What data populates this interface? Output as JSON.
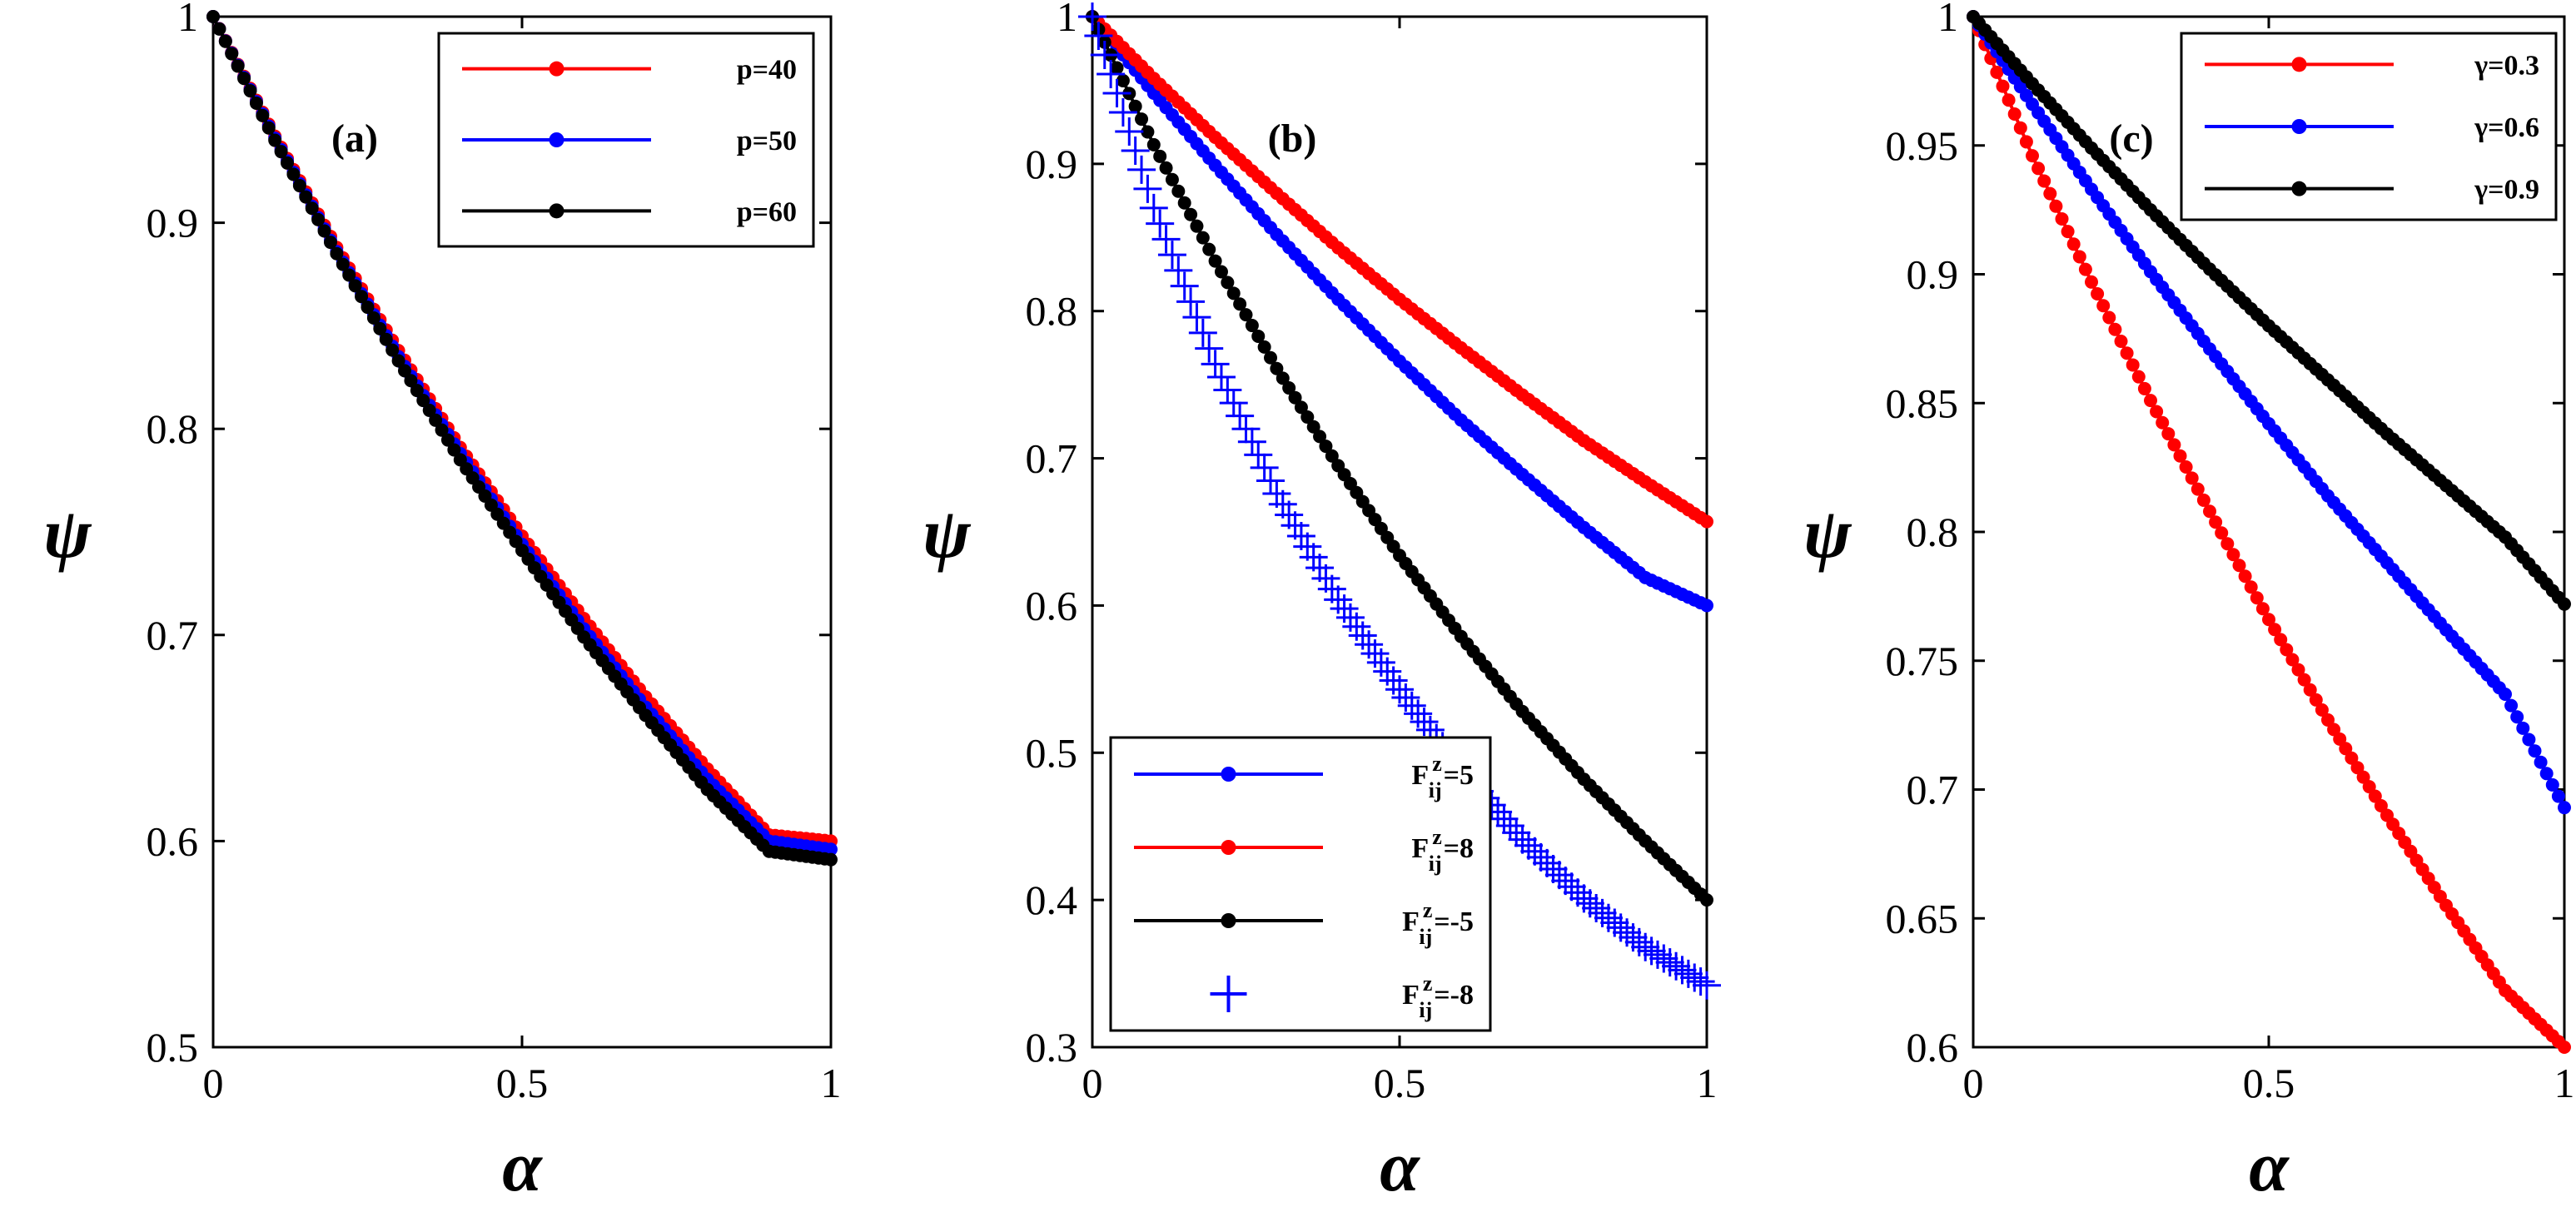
{
  "colors": {
    "red": "#ff0000",
    "blue": "#0000ff",
    "black": "#000000"
  },
  "chart_data": [
    {
      "type": "line",
      "panel_label": "(a)",
      "xlabel": "α",
      "ylabel": "ψ",
      "xlim": [
        0,
        1
      ],
      "ylim": [
        0.5,
        1
      ],
      "xticks": [
        0,
        0.5,
        1
      ],
      "xtick_labels": [
        "0",
        "0.5",
        "1"
      ],
      "yticks": [
        0.5,
        0.6,
        0.7,
        0.8,
        0.9,
        1
      ],
      "ytick_labels": [
        "0.5",
        "0.6",
        "0.7",
        "0.8",
        "0.9",
        "1"
      ],
      "grid": false,
      "legend_position": "top-right",
      "x": [
        0,
        0.1,
        0.2,
        0.3,
        0.4,
        0.5,
        0.6,
        0.7,
        0.8,
        0.9,
        1
      ],
      "series": [
        {
          "name": "p=40",
          "color": "red",
          "marker": "dot",
          "values": [
            1,
            0.942,
            0.888,
            0.838,
            0.791,
            0.748,
            0.708,
            0.67,
            0.635,
            0.603,
            0.6
          ]
        },
        {
          "name": "p=50",
          "color": "blue",
          "marker": "dot",
          "values": [
            1,
            0.941,
            0.886,
            0.835,
            0.788,
            0.744,
            0.703,
            0.665,
            0.63,
            0.6,
            0.596
          ]
        },
        {
          "name": "p=60",
          "color": "black",
          "marker": "dot",
          "values": [
            1,
            0.94,
            0.885,
            0.833,
            0.785,
            0.741,
            0.699,
            0.661,
            0.625,
            0.595,
            0.591
          ]
        }
      ]
    },
    {
      "type": "line",
      "panel_label": "(b)",
      "xlabel": "α",
      "ylabel": "ψ",
      "xlim": [
        0,
        1
      ],
      "ylim": [
        0.3,
        1
      ],
      "xticks": [
        0,
        0.5,
        1
      ],
      "xtick_labels": [
        "0",
        "0.5",
        "1"
      ],
      "yticks": [
        0.3,
        0.4,
        0.5,
        0.6,
        0.7,
        0.8,
        0.9,
        1
      ],
      "ytick_labels": [
        "0.3",
        "0.4",
        "0.5",
        "0.6",
        "0.7",
        "0.8",
        "0.9",
        "1"
      ],
      "grid": false,
      "legend_position": "bottom-left",
      "x": [
        0,
        0.1,
        0.2,
        0.3,
        0.4,
        0.5,
        0.6,
        0.7,
        0.8,
        0.9,
        1
      ],
      "series": [
        {
          "name": "F",
          "name_sup": "z",
          "name_sub": "ij",
          "name_suffix": "=5",
          "color": "blue",
          "marker": "dot",
          "values": [
            1,
            0.948,
            0.899,
            0.852,
            0.808,
            0.766,
            0.726,
            0.689,
            0.653,
            0.619,
            0.6
          ]
        },
        {
          "name": "F",
          "name_sup": "z",
          "name_sub": "ij",
          "name_suffix": "=8",
          "color": "red",
          "marker": "dot",
          "values": [
            1,
            0.958,
            0.918,
            0.88,
            0.843,
            0.808,
            0.775,
            0.743,
            0.712,
            0.684,
            0.657
          ]
        },
        {
          "name": "F",
          "name_sup": "z",
          "name_sub": "ij",
          "name_suffix": "=-5",
          "color": "black",
          "marker": "dot",
          "values": [
            1,
            0.913,
            0.834,
            0.761,
            0.695,
            0.634,
            0.579,
            0.528,
            0.482,
            0.44,
            0.4
          ]
        },
        {
          "name": "F",
          "name_sup": "z",
          "name_sub": "ij",
          "name_suffix": "=-8",
          "color": "blue",
          "marker": "plus",
          "values": [
            1,
            0.87,
            0.764,
            0.676,
            0.604,
            0.543,
            0.488,
            0.441,
            0.401,
            0.368,
            0.342
          ]
        }
      ]
    },
    {
      "type": "line",
      "panel_label": "(c)",
      "xlabel": "α",
      "ylabel": "ψ",
      "xlim": [
        0,
        1
      ],
      "ylim": [
        0.6,
        1
      ],
      "xticks": [
        0,
        0.5,
        1
      ],
      "xtick_labels": [
        "0",
        "0.5",
        "1"
      ],
      "yticks": [
        0.6,
        0.65,
        0.7,
        0.75,
        0.8,
        0.85,
        0.9,
        0.95,
        1
      ],
      "ytick_labels": [
        "0.6",
        "0.65",
        "0.7",
        "0.75",
        "0.8",
        "0.85",
        "0.9",
        "0.95",
        "1"
      ],
      "grid": false,
      "legend_position": "top-right",
      "x": [
        0,
        0.1,
        0.2,
        0.3,
        0.4,
        0.5,
        0.6,
        0.7,
        0.8,
        0.9,
        1
      ],
      "series": [
        {
          "name": "γ=0.3",
          "color": "red",
          "marker": "dot",
          "values": [
            1,
            0.946,
            0.897,
            0.851,
            0.808,
            0.766,
            0.727,
            0.69,
            0.655,
            0.622,
            0.6
          ]
        },
        {
          "name": "γ=0.6",
          "color": "blue",
          "marker": "dot",
          "values": [
            1,
            0.966,
            0.933,
            0.901,
            0.871,
            0.842,
            0.814,
            0.788,
            0.762,
            0.737,
            0.693
          ]
        },
        {
          "name": "γ=0.9",
          "color": "black",
          "marker": "dot",
          "values": [
            1,
            0.974,
            0.949,
            0.925,
            0.902,
            0.88,
            0.859,
            0.838,
            0.818,
            0.798,
            0.772
          ]
        }
      ]
    }
  ]
}
